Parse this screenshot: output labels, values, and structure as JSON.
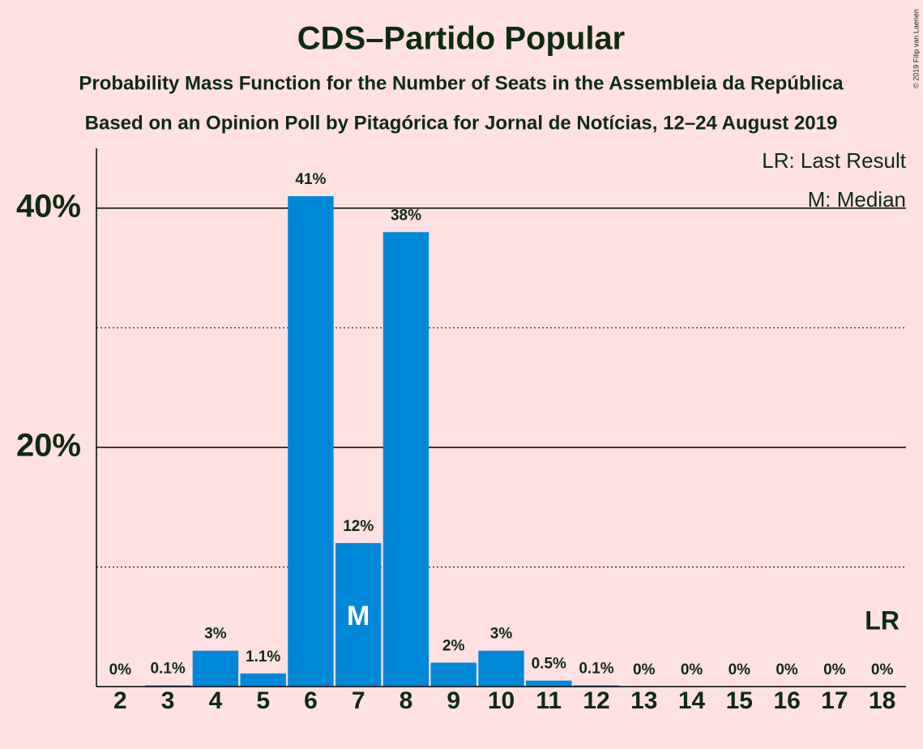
{
  "chart_data": {
    "type": "bar",
    "title": "CDS–Partido Popular",
    "subtitle": [
      "Probability Mass Function for the Number of Seats in the Assembleia da República",
      "Based on an Opinion Poll by Pitagórica for Jornal de Notícias, 12–24 August 2019"
    ],
    "categories": [
      2,
      3,
      4,
      5,
      6,
      7,
      8,
      9,
      10,
      11,
      12,
      13,
      14,
      15,
      16,
      17,
      18
    ],
    "values": [
      0,
      0.1,
      3,
      1.1,
      41,
      12,
      38,
      2,
      3,
      0.5,
      0.1,
      0,
      0,
      0,
      0,
      0,
      0
    ],
    "value_labels": [
      "0%",
      "0.1%",
      "3%",
      "1.1%",
      "41%",
      "12%",
      "38%",
      "2%",
      "3%",
      "0.5%",
      "0.1%",
      "0%",
      "0%",
      "0%",
      "0%",
      "0%",
      "0%"
    ],
    "color": "#0088d8",
    "ylim": [
      0,
      45
    ],
    "yticks": [
      {
        "value": 20,
        "label": "20%"
      },
      {
        "value": 40,
        "label": "40%"
      }
    ],
    "minor_yticks": [
      10,
      30
    ],
    "grid": true,
    "median": 7,
    "median_label": "M",
    "last_result": 18,
    "last_result_label": "LR",
    "legend": [
      "LR: Last Result",
      "M: Median"
    ],
    "copyright": "© 2019 Filip van Laenen"
  }
}
